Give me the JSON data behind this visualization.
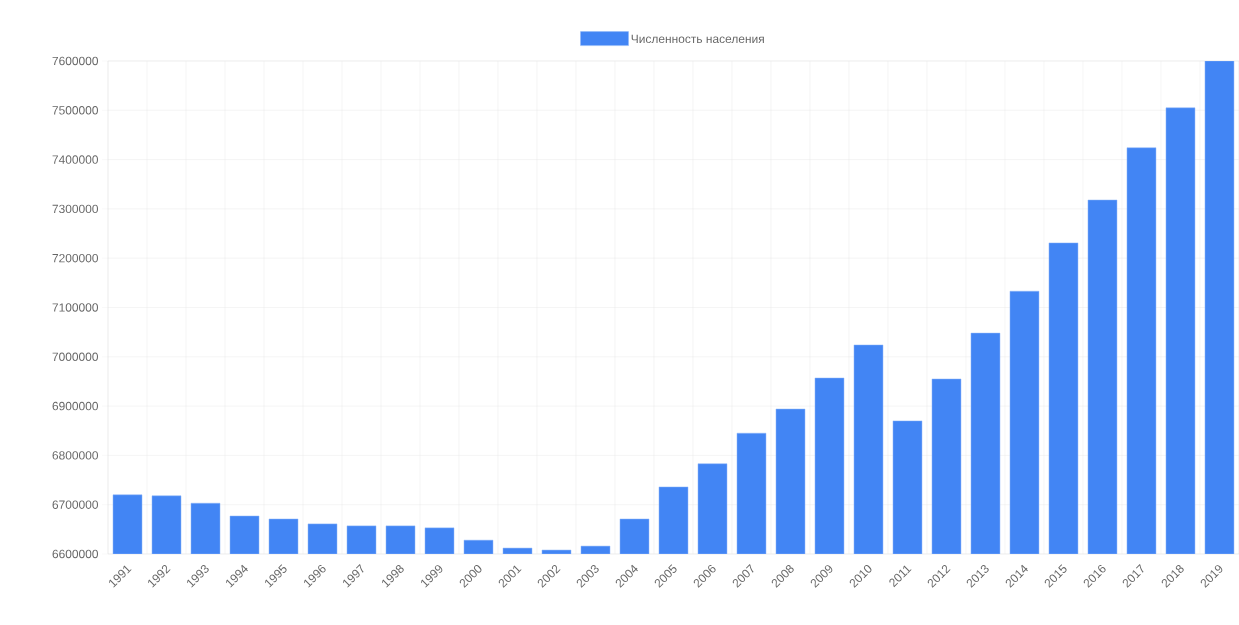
{
  "chart_data": {
    "type": "bar",
    "categories": [
      "1991",
      "1992",
      "1993",
      "1994",
      "1995",
      "1996",
      "1997",
      "1998",
      "1999",
      "2000",
      "2001",
      "2002",
      "2003",
      "2004",
      "2005",
      "2006",
      "2007",
      "2008",
      "2009",
      "2010",
      "2011",
      "2012",
      "2013",
      "2014",
      "2015",
      "2016",
      "2017",
      "2018",
      "2019"
    ],
    "series": [
      {
        "name": "Численность населения",
        "color": "#4285f4",
        "values": [
          6720000,
          6718000,
          6703000,
          6677000,
          6671000,
          6661000,
          6657000,
          6657000,
          6653000,
          6628000,
          6612000,
          6608000,
          6616000,
          6671000,
          6736000,
          6783000,
          6845000,
          6894000,
          6957000,
          7024000,
          6870000,
          6955000,
          7048000,
          7133000,
          7231000,
          7318000,
          7424000,
          7505000,
          7600000
        ]
      }
    ],
    "ylim": [
      6600000,
      7600000
    ],
    "yticks": [
      6600000,
      6700000,
      6800000,
      6900000,
      7000000,
      7100000,
      7200000,
      7300000,
      7400000,
      7500000,
      7600000
    ],
    "grid": true,
    "legend": "top"
  }
}
